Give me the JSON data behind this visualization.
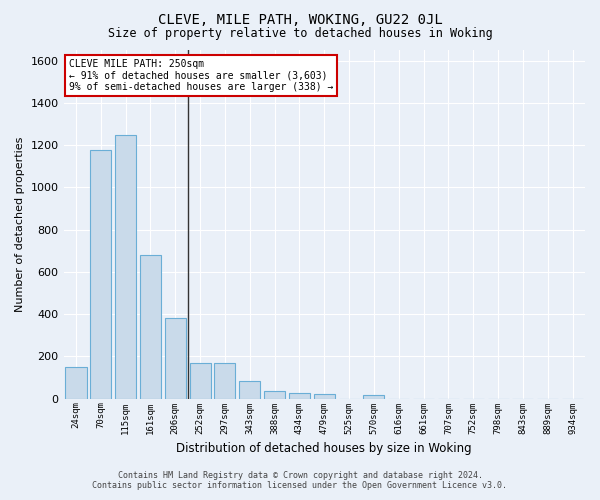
{
  "title": "CLEVE, MILE PATH, WOKING, GU22 0JL",
  "subtitle": "Size of property relative to detached houses in Woking",
  "xlabel": "Distribution of detached houses by size in Woking",
  "ylabel": "Number of detached properties",
  "categories": [
    "24sqm",
    "70sqm",
    "115sqm",
    "161sqm",
    "206sqm",
    "252sqm",
    "297sqm",
    "343sqm",
    "388sqm",
    "434sqm",
    "479sqm",
    "525sqm",
    "570sqm",
    "616sqm",
    "661sqm",
    "707sqm",
    "752sqm",
    "798sqm",
    "843sqm",
    "889sqm",
    "934sqm"
  ],
  "values": [
    150,
    1175,
    1250,
    680,
    380,
    170,
    170,
    85,
    35,
    25,
    20,
    0,
    15,
    0,
    0,
    0,
    0,
    0,
    0,
    0,
    0
  ],
  "bar_color": "#c9daea",
  "bar_edge_color": "#6aaed6",
  "background_color": "#eaf0f8",
  "grid_color": "#ffffff",
  "ylim": [
    0,
    1650
  ],
  "yticks": [
    0,
    200,
    400,
    600,
    800,
    1000,
    1200,
    1400,
    1600
  ],
  "property_marker_index": 5,
  "annotation_title": "CLEVE MILE PATH: 250sqm",
  "annotation_line1": "← 91% of detached houses are smaller (3,603)",
  "annotation_line2": "9% of semi-detached houses are larger (338) →",
  "annotation_box_color": "#ffffff",
  "annotation_box_edge": "#cc0000",
  "marker_line_color": "#333333",
  "footer_line1": "Contains HM Land Registry data © Crown copyright and database right 2024.",
  "footer_line2": "Contains public sector information licensed under the Open Government Licence v3.0."
}
